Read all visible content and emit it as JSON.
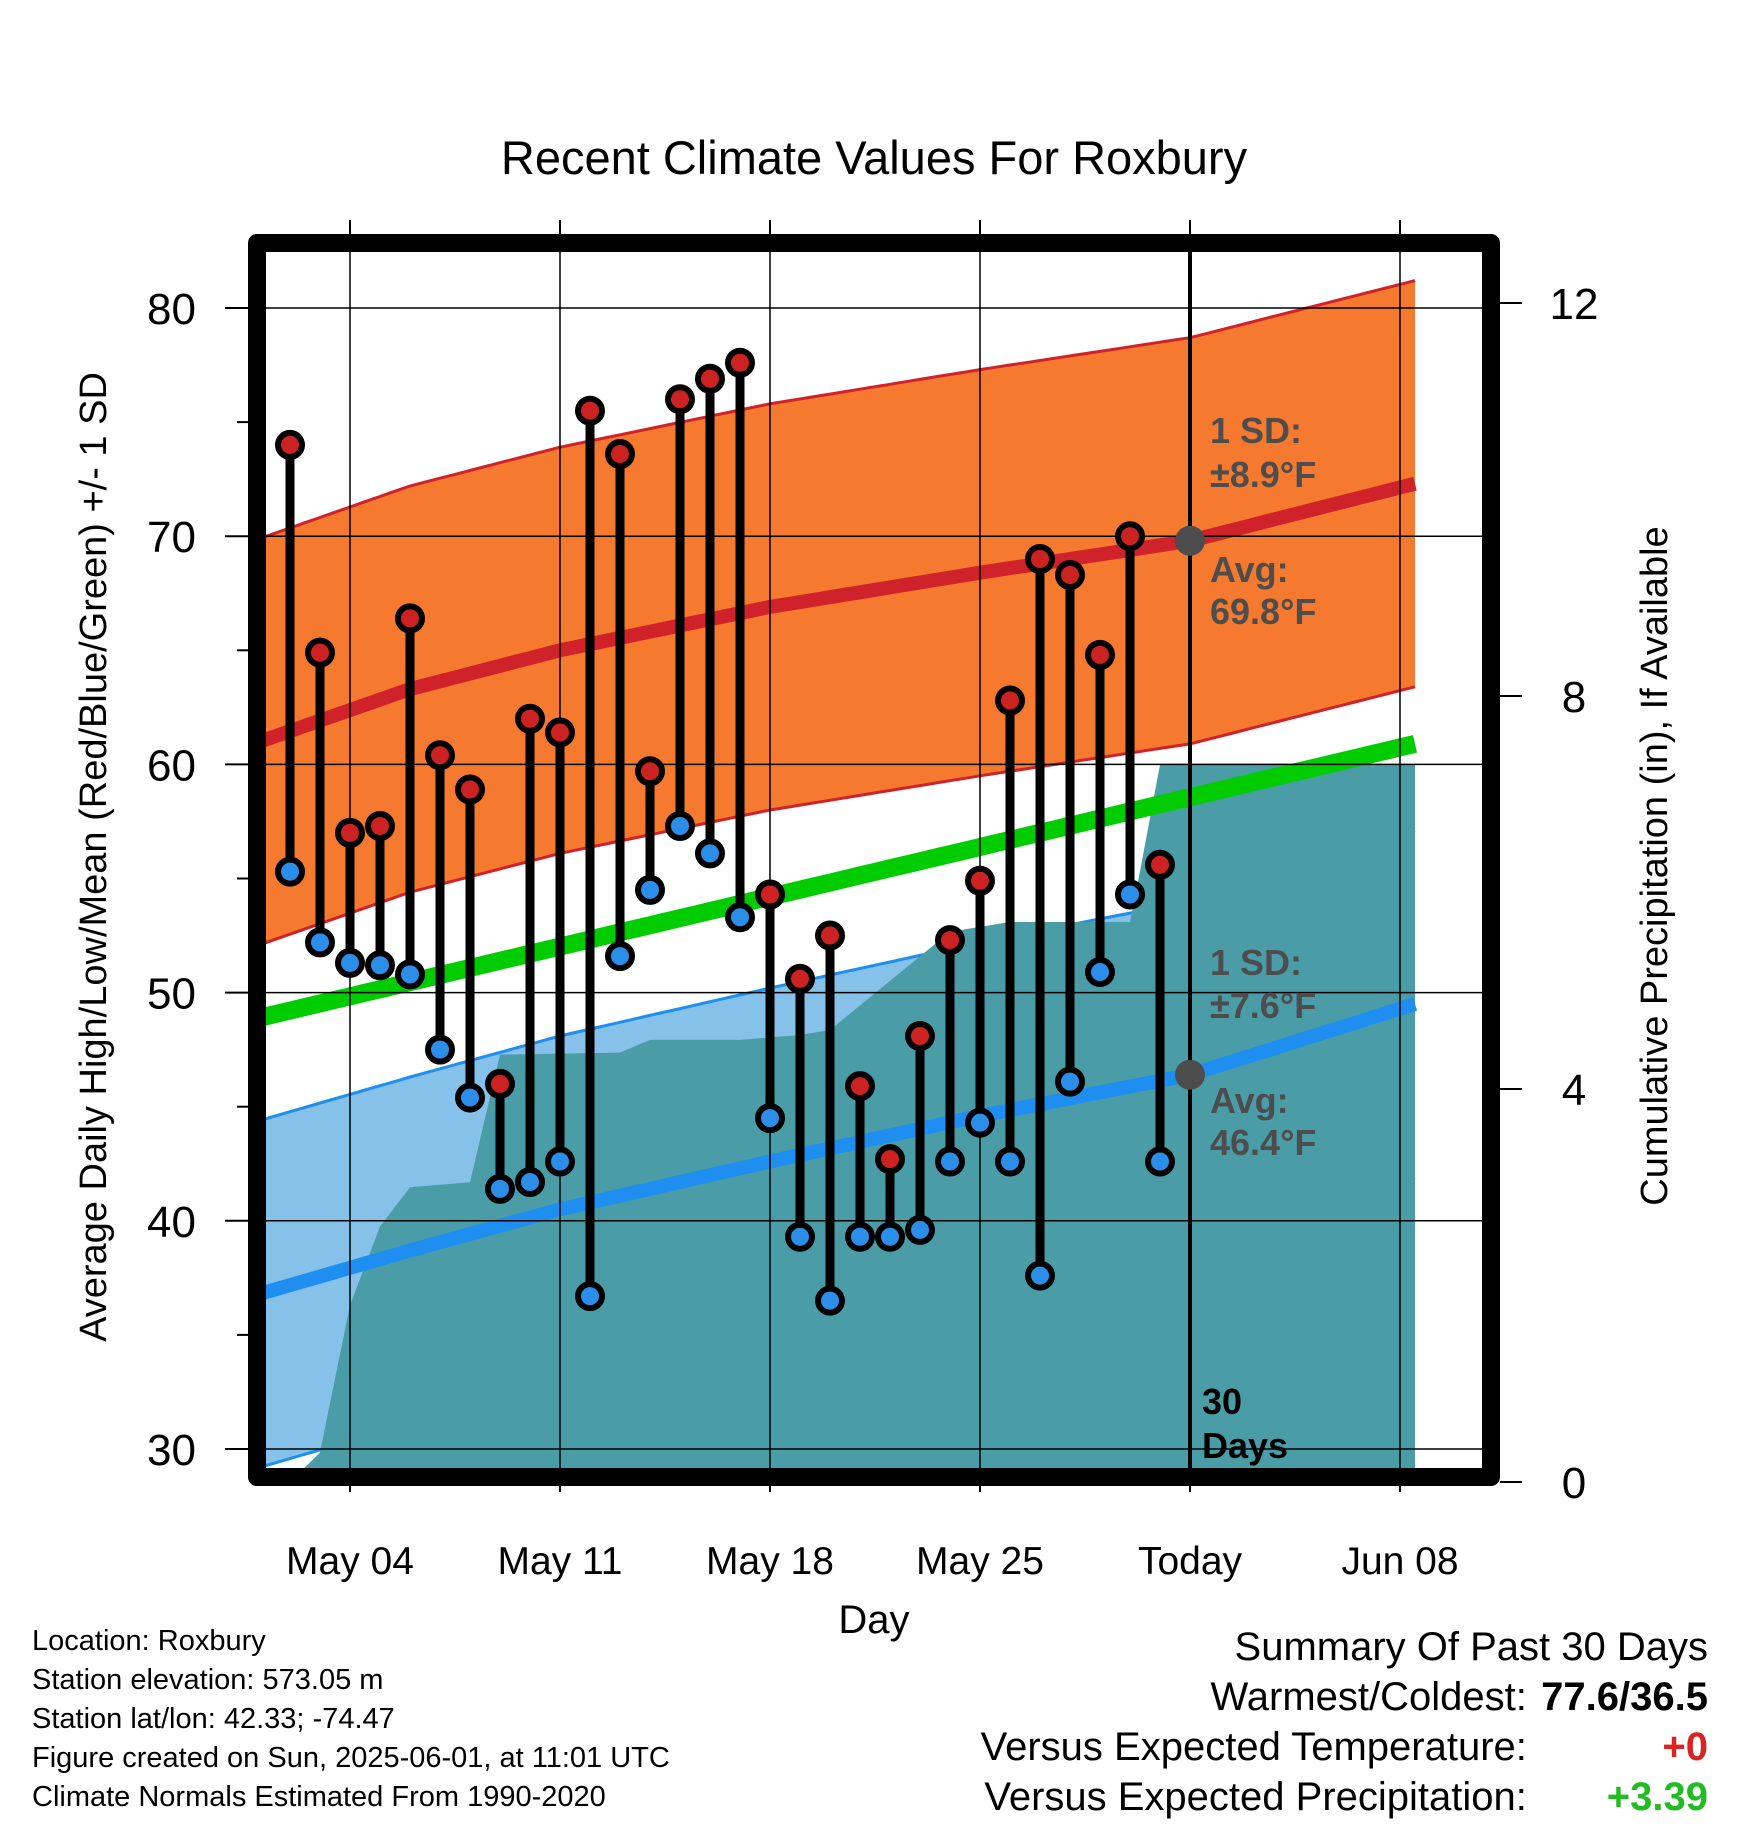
{
  "chart_data": {
    "type": "line",
    "title": "Recent Climate Values For Roxbury",
    "xlabel": "Day",
    "ylabel": "Average Daily High/Low/Mean (Red/Blue/Green) +/- 1 SD",
    "y2label": "Cumulative Precipitation (in), If Available",
    "ylim": [
      29,
      82
    ],
    "y2lim": [
      0,
      24
    ],
    "xlim": [
      1,
      39.5
    ],
    "x_ticks": [
      {
        "x": 4,
        "label": "May 04"
      },
      {
        "x": 11,
        "label": "May 11"
      },
      {
        "x": 18,
        "label": "May 18"
      },
      {
        "x": 25,
        "label": "May 25"
      },
      {
        "x": 32,
        "label": "Today"
      },
      {
        "x": 39,
        "label": "Jun 08"
      }
    ],
    "y_ticks": [
      30,
      40,
      50,
      60,
      70,
      80
    ],
    "y2_ticks": [
      0,
      4,
      8,
      12
    ],
    "grid": true,
    "normals": {
      "high_mean": [
        {
          "x": 1,
          "y": 61.0
        },
        {
          "x": 6,
          "y": 63.3
        },
        {
          "x": 11,
          "y": 65.0
        },
        {
          "x": 18,
          "y": 66.9
        },
        {
          "x": 25,
          "y": 68.4
        },
        {
          "x": 32,
          "y": 69.8
        },
        {
          "x": 39.5,
          "y": 72.3
        }
      ],
      "high_sd": 8.9,
      "low_mean": [
        {
          "x": 1,
          "y": 36.8
        },
        {
          "x": 6,
          "y": 38.7
        },
        {
          "x": 11,
          "y": 40.5
        },
        {
          "x": 18,
          "y": 42.6
        },
        {
          "x": 25,
          "y": 44.6
        },
        {
          "x": 32,
          "y": 46.4
        },
        {
          "x": 39.5,
          "y": 49.5
        }
      ],
      "low_sd": 7.6,
      "overall_mean": [
        {
          "x": 1,
          "y": 48.9
        },
        {
          "x": 39.5,
          "y": 60.9
        }
      ]
    },
    "days": [
      {
        "x": 2,
        "high": 74.0,
        "low": 55.3
      },
      {
        "x": 3,
        "high": 64.9,
        "low": 52.2
      },
      {
        "x": 4,
        "high": 57.0,
        "low": 51.3
      },
      {
        "x": 5,
        "high": 57.3,
        "low": 51.2
      },
      {
        "x": 6,
        "high": 66.4,
        "low": 50.8
      },
      {
        "x": 7,
        "high": 60.4,
        "low": 47.5
      },
      {
        "x": 8,
        "high": 58.9,
        "low": 45.4
      },
      {
        "x": 9,
        "high": 46.0,
        "low": 41.4
      },
      {
        "x": 10,
        "high": 62.0,
        "low": 41.7
      },
      {
        "x": 11,
        "high": 61.4,
        "low": 42.6
      },
      {
        "x": 12,
        "high": 75.5,
        "low": 36.7
      },
      {
        "x": 13,
        "high": 73.6,
        "low": 51.6
      },
      {
        "x": 14,
        "high": 59.7,
        "low": 54.5
      },
      {
        "x": 15,
        "high": 76.0,
        "low": 57.3
      },
      {
        "x": 16,
        "high": 76.9,
        "low": 56.1
      },
      {
        "x": 17,
        "high": 77.6,
        "low": 53.3
      },
      {
        "x": 18,
        "high": 54.3,
        "low": 44.5
      },
      {
        "x": 19,
        "high": 50.6,
        "low": 39.3
      },
      {
        "x": 20,
        "high": 52.5,
        "low": 36.5
      },
      {
        "x": 21,
        "high": 45.9,
        "low": 39.3
      },
      {
        "x": 22,
        "high": 42.7,
        "low": 39.3
      },
      {
        "x": 23,
        "high": 48.1,
        "low": 39.6
      },
      {
        "x": 24,
        "high": 52.3,
        "low": 42.6
      },
      {
        "x": 25,
        "high": 54.9,
        "low": 44.3
      },
      {
        "x": 26,
        "high": 62.8,
        "low": 42.6
      },
      {
        "x": 27,
        "high": 69.0,
        "low": 37.6
      },
      {
        "x": 28,
        "high": 68.3,
        "low": 46.1
      },
      {
        "x": 29,
        "high": 64.8,
        "low": 50.9
      },
      {
        "x": 30,
        "high": 70.0,
        "low": 54.3
      },
      {
        "x": 31,
        "high": 55.6,
        "low": 42.6
      }
    ],
    "precip_cumulative": [
      {
        "x": 2,
        "y": 0.0
      },
      {
        "x": 3,
        "y": 0.3
      },
      {
        "x": 4,
        "y": 1.8
      },
      {
        "x": 5,
        "y": 2.6
      },
      {
        "x": 6,
        "y": 3.0
      },
      {
        "x": 8,
        "y": 3.05
      },
      {
        "x": 9,
        "y": 4.35
      },
      {
        "x": 13,
        "y": 4.37
      },
      {
        "x": 14,
        "y": 4.5
      },
      {
        "x": 17,
        "y": 4.5
      },
      {
        "x": 19,
        "y": 4.55
      },
      {
        "x": 20,
        "y": 4.6
      },
      {
        "x": 24,
        "y": 5.6
      },
      {
        "x": 25,
        "y": 5.65
      },
      {
        "x": 26,
        "y": 5.7
      },
      {
        "x": 30,
        "y": 5.7
      },
      {
        "x": 30.2,
        "y": 6.0
      },
      {
        "x": 31,
        "y": 7.3
      },
      {
        "x": 39.5,
        "y": 7.3
      }
    ],
    "today_x": 32,
    "annotations": {
      "high_sd_label": "1 SD:",
      "high_sd_value": "±8.9°F",
      "high_avg_label": "Avg:",
      "high_avg_value": "69.8°F",
      "low_sd_label": "1 SD:",
      "low_sd_value": "±7.6°F",
      "low_avg_label": "Avg:",
      "low_avg_value": "46.4°F",
      "days_number": "30",
      "days_word": "Days"
    },
    "colors": {
      "high_band": "#f5792f",
      "high_mean_line": "#d0222a",
      "low_band": "#85c1e8",
      "low_mean_line": "#1e8ff0",
      "overall_mean_line": "#00cc00",
      "precip_fill": "#4a9ca6",
      "high_dot": "#cc2222",
      "low_dot": "#2b8ee8",
      "annotation_text": "#4d4d4d"
    }
  },
  "footer": {
    "location": "Location: Roxbury",
    "elevation": "Station elevation: 573.05 m",
    "latlon": "Station lat/lon: 42.33; -74.47",
    "created": "Figure created on Sun, 2025-06-01, at 11:01 UTC",
    "normals": "Climate Normals Estimated From 1990-2020"
  },
  "summary": {
    "title": "Summary Of Past 30 Days",
    "warm_cold_label": "Warmest/Coldest:",
    "warm_cold_value": "77.6/36.5",
    "temp_label": "Versus Expected Temperature:",
    "temp_value": "+0",
    "temp_color": "#dd2222",
    "precip_label": "Versus Expected Precipitation:",
    "precip_value": "+3.39",
    "precip_color": "#22bb22"
  }
}
